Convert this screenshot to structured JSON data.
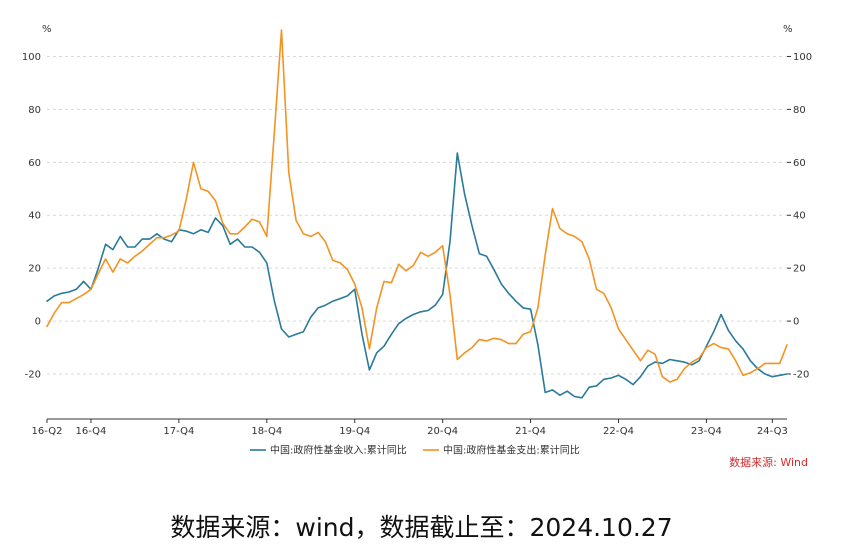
{
  "chart_data": {
    "type": "line",
    "y_unit_left": "%",
    "y_unit_right": "%",
    "ylim": [
      -37,
      110
    ],
    "yticks": [
      -20,
      0,
      20,
      40,
      60,
      80,
      100
    ],
    "x_tick_labels": [
      "16-Q2",
      "16-Q4",
      "17-Q4",
      "18-Q4",
      "19-Q4",
      "20-Q4",
      "21-Q4",
      "22-Q4",
      "23-Q4",
      "24-Q3"
    ],
    "x_tick_positions": [
      0,
      6,
      18,
      30,
      42,
      54,
      66,
      78,
      90,
      99
    ],
    "series": [
      {
        "name": "中国:政府性基金收入:累计同比",
        "color": "#2a7a9b",
        "values": [
          7.5,
          9.5,
          10.5,
          11,
          12,
          15,
          12,
          20,
          29,
          27,
          32,
          28,
          28,
          31,
          31,
          33,
          31,
          30,
          34.5,
          34,
          33,
          34.5,
          33.5,
          39,
          36,
          29,
          31,
          28,
          28,
          26,
          22,
          8,
          -3,
          -6,
          -5,
          -4,
          1.5,
          5,
          6,
          7.5,
          8.5,
          9.5,
          12,
          -5,
          -18.5,
          -12,
          -9.5,
          -5,
          -1,
          1,
          2.5,
          3.5,
          4,
          6,
          10,
          30,
          63.5,
          48,
          36,
          25.5,
          24.5,
          19.5,
          14,
          10.5,
          7.5,
          5,
          4.5,
          -9,
          -27,
          -26,
          -28,
          -26.5,
          -28.5,
          -29,
          -25,
          -24.5,
          -22,
          -21.5,
          -20.5,
          -22,
          -24,
          -21,
          -17,
          -15.5,
          -16,
          -14.5,
          -15,
          -15.5,
          -16.5,
          -15,
          -9.5,
          -4,
          2.5,
          -3.5,
          -7.5,
          -10.5,
          -15,
          -18,
          -20,
          -21,
          -20.5,
          -20
        ]
      },
      {
        "name": "中国:政府性基金支出:累计同比",
        "color": "#f39322",
        "values": [
          -2,
          3,
          7,
          7,
          8.5,
          10,
          12,
          18,
          23.5,
          18.5,
          23.5,
          22,
          24.5,
          26.5,
          29,
          31.5,
          31.5,
          32.5,
          34,
          46,
          60,
          50,
          49,
          45.5,
          37,
          33,
          33,
          35.5,
          38.5,
          37.5,
          32,
          70,
          110,
          56,
          38,
          33,
          32,
          33.5,
          30,
          23,
          22,
          19.5,
          14,
          5,
          -10.5,
          5,
          15,
          14.5,
          21.5,
          19,
          21,
          26,
          24.5,
          26,
          28.5,
          10,
          -14.5,
          -12,
          -10,
          -7,
          -7.5,
          -6.5,
          -7,
          -8.5,
          -8.5,
          -5,
          -4,
          5,
          25,
          42.5,
          35,
          33,
          32,
          30,
          23.5,
          12,
          10.5,
          5,
          -3,
          -7,
          -11,
          -15,
          -11,
          -12.5,
          -21,
          -23,
          -22,
          -18,
          -15.5,
          -14,
          -10,
          -8.5,
          -10,
          -10.5,
          -15,
          -20.5,
          -19.5,
          -18,
          -16,
          -16,
          -16,
          -9
        ]
      }
    ],
    "source_label": "数据来源: Wind",
    "legend_position": "bottom",
    "grid": "horizontal dashed"
  },
  "footer_text": "数据来源：wind，数据截止至：2024.10.27"
}
